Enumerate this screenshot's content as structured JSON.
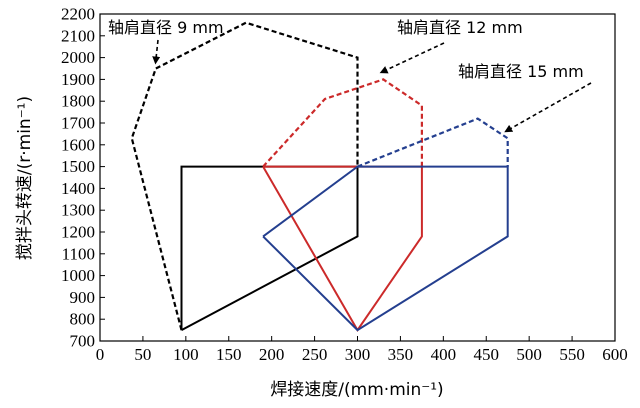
{
  "chart_data": {
    "type": "line",
    "title": "",
    "xlabel": "焊接速度/(mm·min⁻¹)",
    "ylabel": "搅拌头转速/(r·min⁻¹)",
    "xlim": [
      0,
      600
    ],
    "ylim": [
      700,
      2200
    ],
    "xticks": [
      0,
      50,
      100,
      150,
      200,
      250,
      300,
      350,
      400,
      450,
      500,
      550,
      600
    ],
    "yticks": [
      700,
      800,
      900,
      1000,
      1100,
      1200,
      1300,
      1400,
      1500,
      1600,
      1700,
      1800,
      1900,
      2000,
      2100,
      2200
    ],
    "grid": false,
    "series": [
      {
        "name": "轴肩直径 9 mm",
        "color": "#000000",
        "solid": [
          [
            95,
            750
          ],
          [
            95,
            1500
          ],
          [
            300,
            1500
          ],
          [
            300,
            1180
          ],
          [
            95,
            750
          ]
        ],
        "dashed": [
          [
            95,
            750
          ],
          [
            37,
            1630
          ],
          [
            65,
            1950
          ],
          [
            170,
            2160
          ],
          [
            300,
            2000
          ],
          [
            300,
            1500
          ]
        ]
      },
      {
        "name": "轴肩直径 12 mm",
        "color": "#cc2a2a",
        "solid": [
          [
            190,
            1500
          ],
          [
            375,
            1500
          ],
          [
            375,
            1180
          ],
          [
            300,
            750
          ],
          [
            190,
            1500
          ]
        ],
        "dashed": [
          [
            190,
            1500
          ],
          [
            262,
            1810
          ],
          [
            330,
            1900
          ],
          [
            375,
            1780
          ],
          [
            375,
            1500
          ]
        ]
      },
      {
        "name": "轴肩直径 15 mm",
        "color": "#243f8f",
        "solid": [
          [
            190,
            1180
          ],
          [
            300,
            1500
          ],
          [
            475,
            1500
          ],
          [
            475,
            1180
          ],
          [
            300,
            750
          ],
          [
            190,
            1180
          ]
        ],
        "dashed": [
          [
            300,
            1500
          ],
          [
            440,
            1720
          ],
          [
            475,
            1630
          ],
          [
            475,
            1500
          ]
        ]
      }
    ],
    "annotations": [
      {
        "text": "轴肩直径 9 mm",
        "arrow_to": [
          65,
          1950
        ]
      },
      {
        "text": "轴肩直径 12 mm",
        "arrow_to": [
          330,
          1900
        ]
      },
      {
        "text": "轴肩直径 15 mm",
        "arrow_to": [
          475,
          1630
        ]
      }
    ]
  }
}
